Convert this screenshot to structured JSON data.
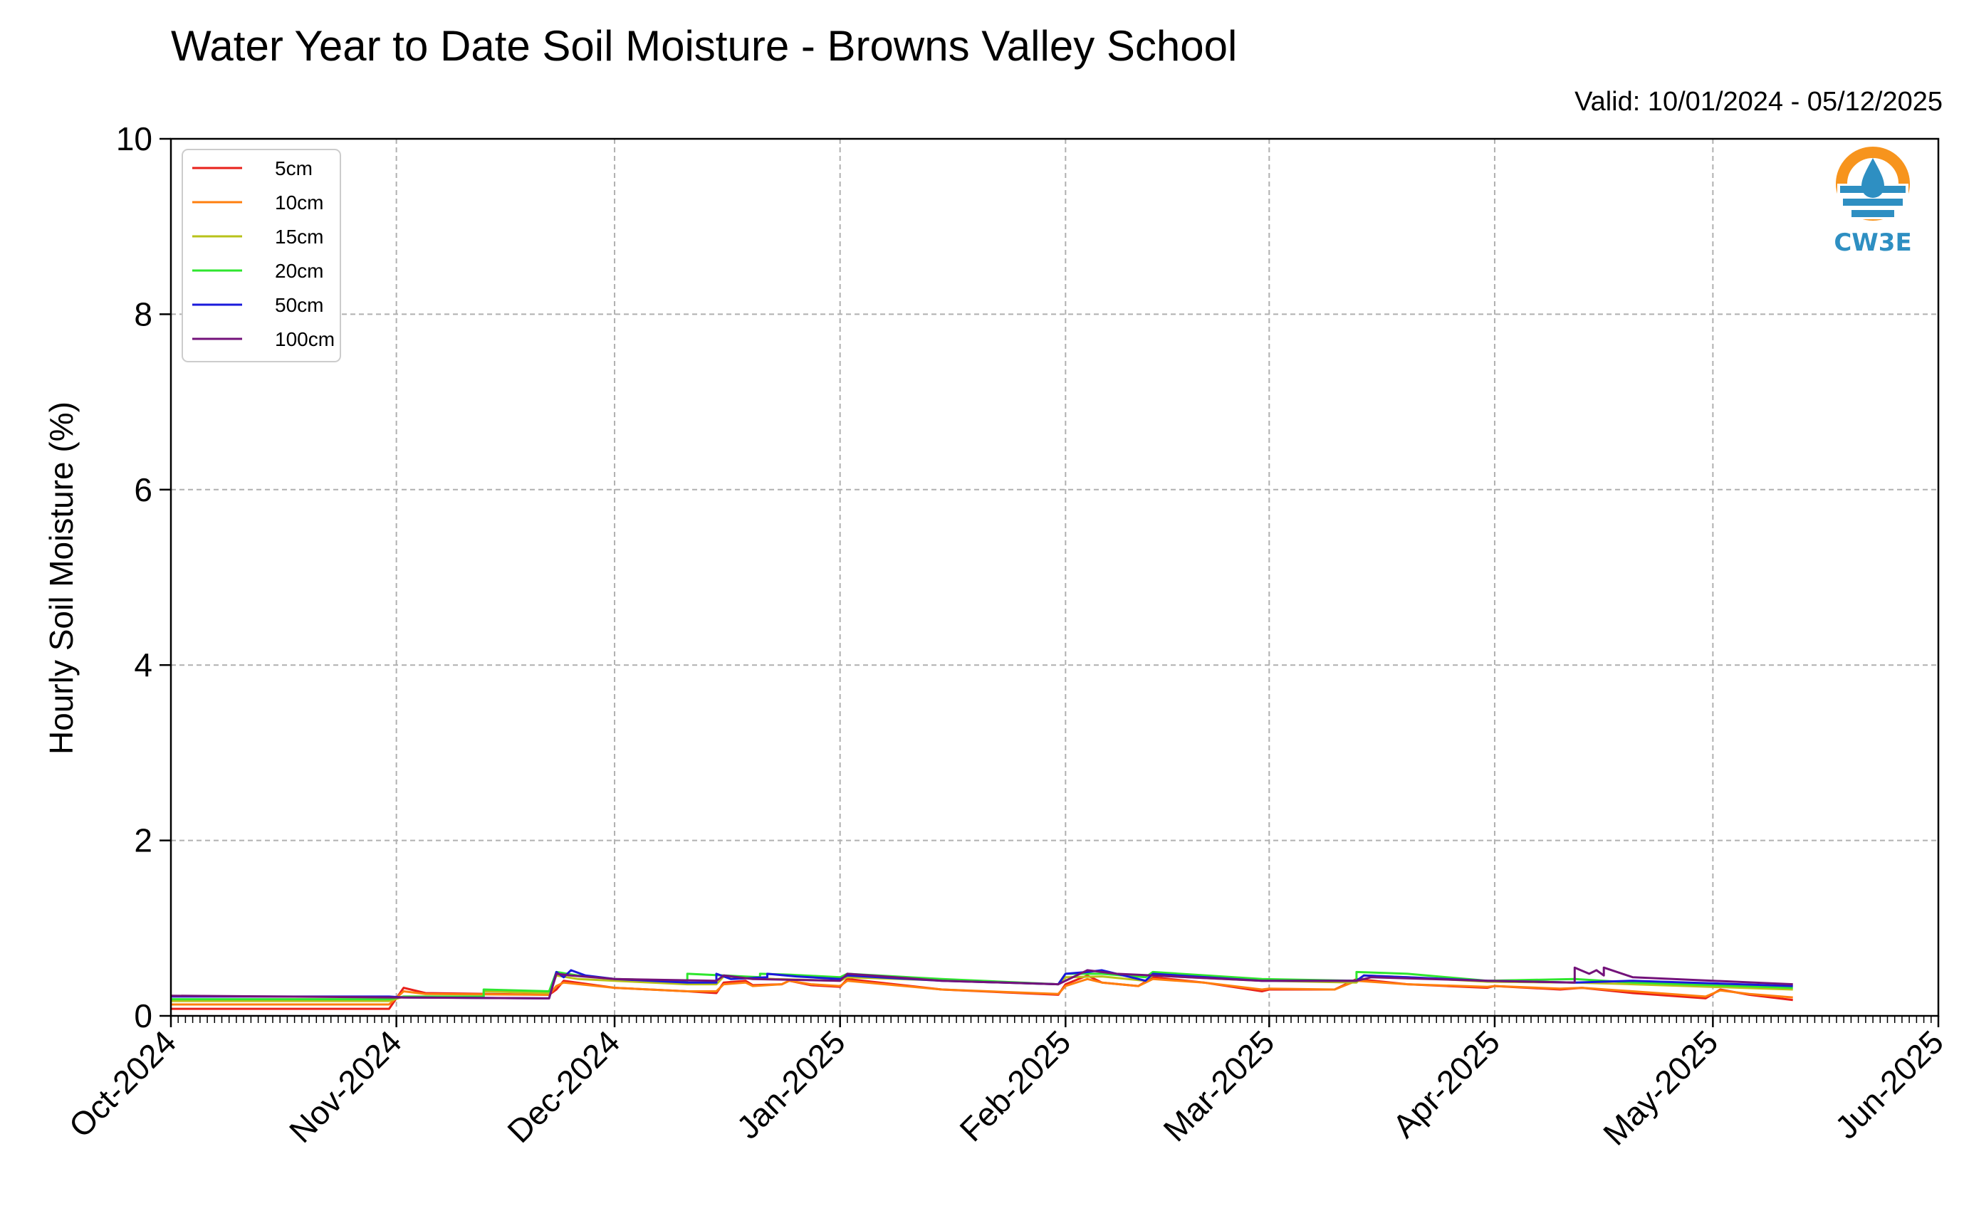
{
  "chart_data": {
    "type": "line",
    "title": "Water Year to Date Soil Moisture - Browns Valley School",
    "subtitle": "Valid: 10/01/2024 - 05/12/2025",
    "xlabel": "",
    "ylabel": "Hourly Soil Moisture (%)",
    "ylim": [
      0,
      10
    ],
    "yticks": [
      "0",
      "2",
      "4",
      "6",
      "8",
      "10"
    ],
    "xlim": [
      "2024-10-01",
      "2025-06-01"
    ],
    "xticks": [
      {
        "date": "2024-10-01",
        "label": "Oct-2024"
      },
      {
        "date": "2024-11-01",
        "label": "Nov-2024"
      },
      {
        "date": "2024-12-01",
        "label": "Dec-2024"
      },
      {
        "date": "2025-01-01",
        "label": "Jan-2025"
      },
      {
        "date": "2025-02-01",
        "label": "Feb-2025"
      },
      {
        "date": "2025-03-01",
        "label": "Mar-2025"
      },
      {
        "date": "2025-04-01",
        "label": "Apr-2025"
      },
      {
        "date": "2025-05-01",
        "label": "May-2025"
      },
      {
        "date": "2025-06-01",
        "label": "Jun-2025"
      }
    ],
    "grid": true,
    "legend_position": "top-left",
    "series": [
      {
        "name": "5cm",
        "color": "#e8201a",
        "points": [
          [
            "2024-10-01",
            0.08
          ],
          [
            "2024-10-31",
            0.08
          ],
          [
            "2024-11-02",
            0.32
          ],
          [
            "2024-11-05",
            0.26
          ],
          [
            "2024-11-22",
            0.24
          ],
          [
            "2024-11-23",
            0.3
          ],
          [
            "2024-11-24",
            0.4
          ],
          [
            "2024-12-01",
            0.32
          ],
          [
            "2024-12-11",
            0.28
          ],
          [
            "2024-12-15",
            0.26
          ],
          [
            "2024-12-16",
            0.38
          ],
          [
            "2024-12-19",
            0.4
          ],
          [
            "2024-12-20",
            0.35
          ],
          [
            "2024-12-24",
            0.36
          ],
          [
            "2024-12-25",
            0.4
          ],
          [
            "2024-12-28",
            0.35
          ],
          [
            "2025-01-01",
            0.33
          ],
          [
            "2025-01-02",
            0.42
          ],
          [
            "2025-01-15",
            0.3
          ],
          [
            "2025-01-31",
            0.24
          ],
          [
            "2025-02-01",
            0.36
          ],
          [
            "2025-02-04",
            0.46
          ],
          [
            "2025-02-06",
            0.38
          ],
          [
            "2025-02-11",
            0.34
          ],
          [
            "2025-02-13",
            0.44
          ],
          [
            "2025-02-20",
            0.38
          ],
          [
            "2025-02-28",
            0.28
          ],
          [
            "2025-03-01",
            0.3
          ],
          [
            "2025-03-10",
            0.3
          ],
          [
            "2025-03-13",
            0.42
          ],
          [
            "2025-03-20",
            0.36
          ],
          [
            "2025-03-31",
            0.32
          ],
          [
            "2025-04-01",
            0.34
          ],
          [
            "2025-04-10",
            0.3
          ],
          [
            "2025-04-13",
            0.32
          ],
          [
            "2025-04-20",
            0.26
          ],
          [
            "2025-04-30",
            0.2
          ],
          [
            "2025-05-02",
            0.3
          ],
          [
            "2025-05-06",
            0.24
          ],
          [
            "2025-05-12",
            0.18
          ]
        ]
      },
      {
        "name": "10cm",
        "color": "#ff7f0e",
        "points": [
          [
            "2024-10-01",
            0.13
          ],
          [
            "2024-10-31",
            0.13
          ],
          [
            "2024-11-02",
            0.28
          ],
          [
            "2024-11-05",
            0.25
          ],
          [
            "2024-11-22",
            0.24
          ],
          [
            "2024-11-23",
            0.34
          ],
          [
            "2024-11-24",
            0.38
          ],
          [
            "2024-12-01",
            0.32
          ],
          [
            "2024-12-11",
            0.28
          ],
          [
            "2024-12-15",
            0.28
          ],
          [
            "2024-12-16",
            0.36
          ],
          [
            "2024-12-19",
            0.38
          ],
          [
            "2024-12-20",
            0.34
          ],
          [
            "2024-12-24",
            0.36
          ],
          [
            "2024-12-25",
            0.4
          ],
          [
            "2024-12-28",
            0.36
          ],
          [
            "2025-01-01",
            0.34
          ],
          [
            "2025-01-02",
            0.4
          ],
          [
            "2025-01-15",
            0.3
          ],
          [
            "2025-01-31",
            0.25
          ],
          [
            "2025-02-01",
            0.34
          ],
          [
            "2025-02-04",
            0.42
          ],
          [
            "2025-02-06",
            0.38
          ],
          [
            "2025-02-11",
            0.34
          ],
          [
            "2025-02-13",
            0.42
          ],
          [
            "2025-02-20",
            0.38
          ],
          [
            "2025-02-28",
            0.3
          ],
          [
            "2025-03-01",
            0.31
          ],
          [
            "2025-03-10",
            0.3
          ],
          [
            "2025-03-13",
            0.4
          ],
          [
            "2025-03-20",
            0.36
          ],
          [
            "2025-03-31",
            0.33
          ],
          [
            "2025-04-01",
            0.34
          ],
          [
            "2025-04-10",
            0.31
          ],
          [
            "2025-04-13",
            0.32
          ],
          [
            "2025-04-20",
            0.28
          ],
          [
            "2025-04-30",
            0.22
          ],
          [
            "2025-05-02",
            0.29
          ],
          [
            "2025-05-06",
            0.25
          ],
          [
            "2025-05-12",
            0.21
          ]
        ]
      },
      {
        "name": "15cm",
        "color": "#b8c21a",
        "points": [
          [
            "2024-10-01",
            0.17
          ],
          [
            "2024-10-31",
            0.17
          ],
          [
            "2024-11-02",
            0.22
          ],
          [
            "2024-11-05",
            0.22
          ],
          [
            "2024-11-13",
            0.22
          ],
          [
            "2024-11-13",
            0.28
          ],
          [
            "2024-11-22",
            0.26
          ],
          [
            "2024-11-23",
            0.46
          ],
          [
            "2024-11-26",
            0.42
          ],
          [
            "2024-12-01",
            0.4
          ],
          [
            "2024-12-11",
            0.36
          ],
          [
            "2024-12-15",
            0.36
          ],
          [
            "2024-12-16",
            0.45
          ],
          [
            "2024-12-23",
            0.42
          ],
          [
            "2025-01-01",
            0.4
          ],
          [
            "2025-01-02",
            0.44
          ],
          [
            "2025-01-31",
            0.36
          ],
          [
            "2025-02-01",
            0.44
          ],
          [
            "2025-02-06",
            0.45
          ],
          [
            "2025-02-12",
            0.4
          ],
          [
            "2025-02-13",
            0.46
          ],
          [
            "2025-02-28",
            0.4
          ],
          [
            "2025-03-13",
            0.38
          ],
          [
            "2025-03-14",
            0.46
          ],
          [
            "2025-03-20",
            0.44
          ],
          [
            "2025-03-31",
            0.39
          ],
          [
            "2025-04-12",
            0.38
          ],
          [
            "2025-04-20",
            0.36
          ],
          [
            "2025-05-12",
            0.3
          ]
        ]
      },
      {
        "name": "20cm",
        "color": "#2ee62e",
        "points": [
          [
            "2024-10-01",
            0.19
          ],
          [
            "2024-10-31",
            0.19
          ],
          [
            "2024-11-02",
            0.22
          ],
          [
            "2024-11-05",
            0.22
          ],
          [
            "2024-11-13",
            0.22
          ],
          [
            "2024-11-13",
            0.3
          ],
          [
            "2024-11-22",
            0.28
          ],
          [
            "2024-11-23",
            0.5
          ],
          [
            "2024-11-26",
            0.46
          ],
          [
            "2024-12-01",
            0.42
          ],
          [
            "2024-12-11",
            0.4
          ],
          [
            "2024-12-11",
            0.48
          ],
          [
            "2024-12-16",
            0.46
          ],
          [
            "2024-12-21",
            0.44
          ],
          [
            "2024-12-21",
            0.48
          ],
          [
            "2024-12-25",
            0.47
          ],
          [
            "2025-01-01",
            0.44
          ],
          [
            "2025-01-02",
            0.48
          ],
          [
            "2025-01-15",
            0.42
          ],
          [
            "2025-01-31",
            0.36
          ],
          [
            "2025-02-01",
            0.48
          ],
          [
            "2025-02-06",
            0.48
          ],
          [
            "2025-02-12",
            0.44
          ],
          [
            "2025-02-13",
            0.5
          ],
          [
            "2025-02-28",
            0.42
          ],
          [
            "2025-03-13",
            0.4
          ],
          [
            "2025-03-13",
            0.5
          ],
          [
            "2025-03-20",
            0.48
          ],
          [
            "2025-03-31",
            0.4
          ],
          [
            "2025-04-12",
            0.42
          ],
          [
            "2025-04-20",
            0.38
          ],
          [
            "2025-05-12",
            0.32
          ]
        ]
      },
      {
        "name": "50cm",
        "color": "#1a1adb",
        "points": [
          [
            "2024-10-01",
            0.22
          ],
          [
            "2024-10-31",
            0.22
          ],
          [
            "2024-11-02",
            0.21
          ],
          [
            "2024-11-22",
            0.2
          ],
          [
            "2024-11-23",
            0.5
          ],
          [
            "2024-11-24",
            0.44
          ],
          [
            "2024-11-25",
            0.52
          ],
          [
            "2024-11-27",
            0.46
          ],
          [
            "2024-12-01",
            0.42
          ],
          [
            "2024-12-11",
            0.38
          ],
          [
            "2024-12-15",
            0.38
          ],
          [
            "2024-12-15",
            0.48
          ],
          [
            "2024-12-17",
            0.42
          ],
          [
            "2024-12-22",
            0.44
          ],
          [
            "2024-12-22",
            0.48
          ],
          [
            "2024-12-26",
            0.45
          ],
          [
            "2025-01-01",
            0.42
          ],
          [
            "2025-01-02",
            0.46
          ],
          [
            "2025-01-15",
            0.4
          ],
          [
            "2025-01-31",
            0.36
          ],
          [
            "2025-02-01",
            0.48
          ],
          [
            "2025-02-04",
            0.5
          ],
          [
            "2025-02-06",
            0.52
          ],
          [
            "2025-02-12",
            0.4
          ],
          [
            "2025-02-13",
            0.48
          ],
          [
            "2025-02-28",
            0.4
          ],
          [
            "2025-03-13",
            0.4
          ],
          [
            "2025-03-14",
            0.46
          ],
          [
            "2025-03-20",
            0.44
          ],
          [
            "2025-03-31",
            0.4
          ],
          [
            "2025-04-12",
            0.38
          ],
          [
            "2025-04-20",
            0.4
          ],
          [
            "2025-05-12",
            0.34
          ]
        ]
      },
      {
        "name": "100cm",
        "color": "#73127a",
        "points": [
          [
            "2024-10-01",
            0.23
          ],
          [
            "2024-10-31",
            0.21
          ],
          [
            "2024-11-22",
            0.2
          ],
          [
            "2024-11-23",
            0.48
          ],
          [
            "2024-11-25",
            0.46
          ],
          [
            "2024-12-01",
            0.42
          ],
          [
            "2024-12-15",
            0.4
          ],
          [
            "2024-12-16",
            0.46
          ],
          [
            "2024-12-20",
            0.42
          ],
          [
            "2025-01-01",
            0.4
          ],
          [
            "2025-01-02",
            0.48
          ],
          [
            "2025-01-15",
            0.4
          ],
          [
            "2025-01-31",
            0.36
          ],
          [
            "2025-02-04",
            0.52
          ],
          [
            "2025-02-08",
            0.48
          ],
          [
            "2025-02-13",
            0.46
          ],
          [
            "2025-02-28",
            0.4
          ],
          [
            "2025-03-13",
            0.4
          ],
          [
            "2025-03-15",
            0.44
          ],
          [
            "2025-03-31",
            0.4
          ],
          [
            "2025-04-12",
            0.38
          ],
          [
            "2025-04-12",
            0.55
          ],
          [
            "2025-04-14",
            0.48
          ],
          [
            "2025-04-15",
            0.52
          ],
          [
            "2025-04-16",
            0.46
          ],
          [
            "2025-04-16",
            0.55
          ],
          [
            "2025-04-20",
            0.44
          ],
          [
            "2025-05-12",
            0.36
          ]
        ]
      }
    ]
  },
  "logo": {
    "text": "CW3E",
    "ring_color": "#f7941d",
    "water_color": "#2e8fc2"
  }
}
